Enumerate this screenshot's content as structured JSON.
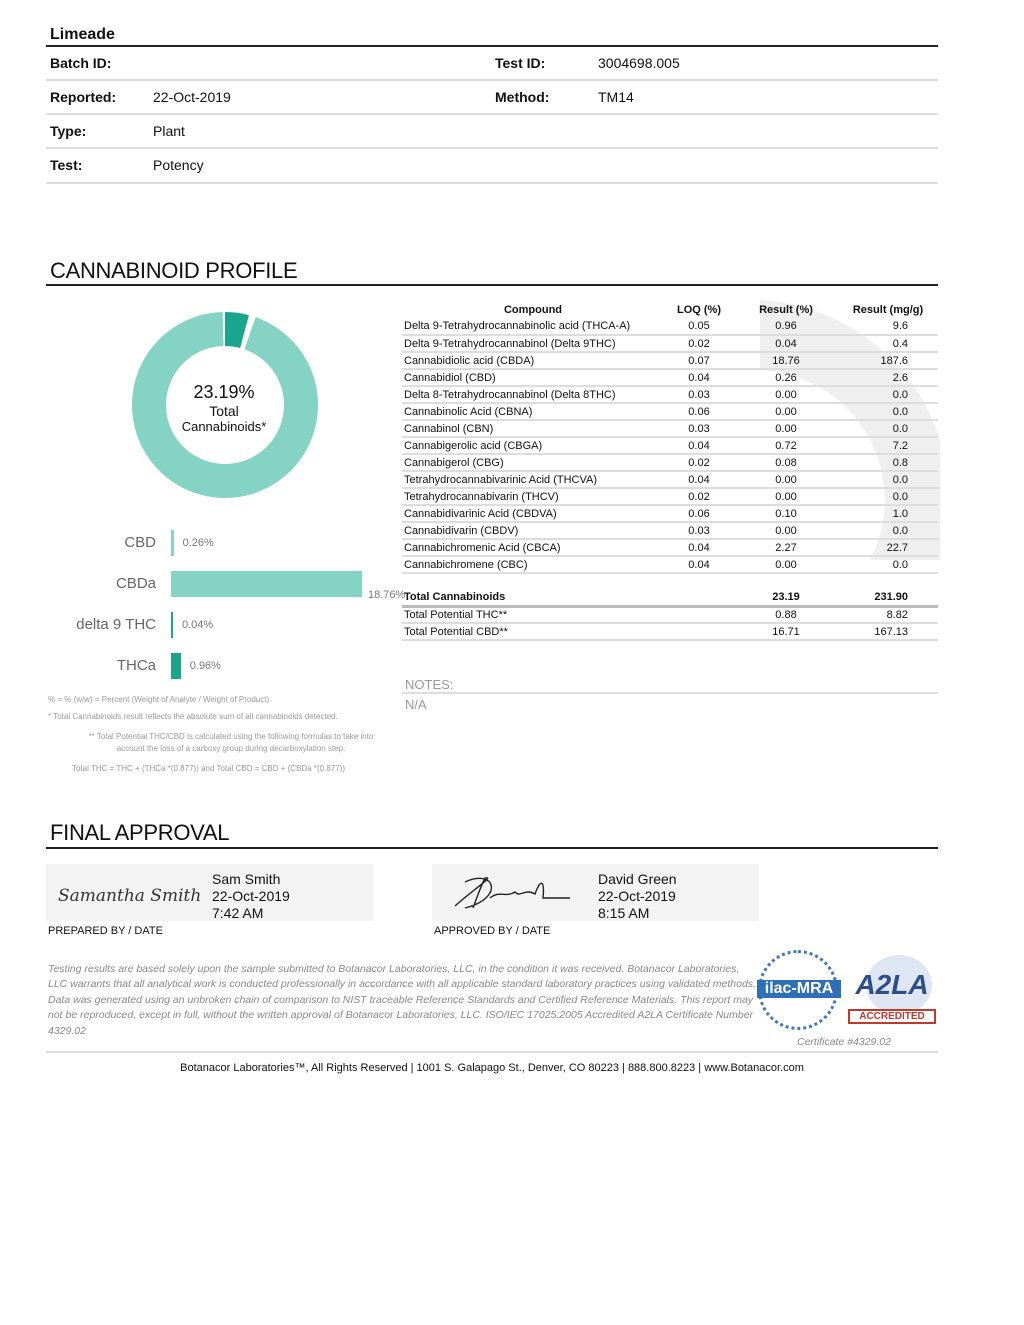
{
  "header": {
    "title": "Limeade",
    "fields": [
      {
        "label": "Batch ID:",
        "value": ""
      },
      {
        "label": "Test ID:",
        "value": "3004698.005"
      },
      {
        "label": "Reported:",
        "value": "22-Oct-2019"
      },
      {
        "label": "Method:",
        "value": "TM14"
      },
      {
        "label": "Type:",
        "value": "Plant"
      },
      {
        "label": "Test:",
        "value": "Potency"
      }
    ]
  },
  "profile": {
    "heading": "CANNABINOID PROFILE",
    "donut": {
      "total": "23.19%",
      "line1": "Total",
      "line2": "Cannabinoids*",
      "thca_fraction": 0.0414,
      "colors": {
        "main": "#84d3c4",
        "accent": "#19a68c"
      }
    },
    "bars": [
      {
        "label": "CBD",
        "value": 0.26,
        "text": "0.26%",
        "color": "#84d3c4"
      },
      {
        "label": "CBDa",
        "value": 18.76,
        "text": "18.76%",
        "color": "#84d3c4"
      },
      {
        "label": "delta 9 THC",
        "value": 0.04,
        "text": "0.04%",
        "color": "#19a68c"
      },
      {
        "label": "THCa",
        "value": 0.96,
        "text": "0.96%",
        "color": "#19a68c"
      }
    ],
    "table": {
      "headers": [
        "Compound",
        "LOQ (%)",
        "Result (%)",
        "Result (mg/g)"
      ],
      "rows": [
        [
          "Delta 9-Tetrahydrocannabinolic acid (THCA-A)",
          "0.05",
          "0.96",
          "9.6"
        ],
        [
          "Delta 9-Tetrahydrocannabinol  (Delta 9THC)",
          "0.02",
          "0.04",
          "0.4"
        ],
        [
          "Cannabidiolic acid  (CBDA)",
          "0.07",
          "18.76",
          "187.6"
        ],
        [
          "Cannabidiol  (CBD)",
          "0.04",
          "0.26",
          "2.6"
        ],
        [
          "Delta 8-Tetrahydrocannabinol  (Delta 8THC)",
          "0.03",
          "0.00",
          "0.0"
        ],
        [
          "Cannabinolic Acid  (CBNA)",
          "0.06",
          "0.00",
          "0.0"
        ],
        [
          "Cannabinol  (CBN)",
          "0.03",
          "0.00",
          "0.0"
        ],
        [
          "Cannabigerolic acid  (CBGA)",
          "0.04",
          "0.72",
          "7.2"
        ],
        [
          "Cannabigerol  (CBG)",
          "0.02",
          "0.08",
          "0.8"
        ],
        [
          "Tetrahydrocannabivarinic Acid  (THCVA)",
          "0.04",
          "0.00",
          "0.0"
        ],
        [
          "Tetrahydrocannabivarin  (THCV)",
          "0.02",
          "0.00",
          "0.0"
        ],
        [
          "Cannabidivarinic Acid  (CBDVA)",
          "0.06",
          "0.10",
          "1.0"
        ],
        [
          "Cannabidivarin  (CBDV)",
          "0.03",
          "0.00",
          "0.0"
        ],
        [
          "Cannabichromenic Acid  (CBCA)",
          "0.04",
          "2.27",
          "22.7"
        ],
        [
          "Cannabichromene  (CBC)",
          "0.04",
          "0.00",
          "0.0"
        ]
      ],
      "totals": [
        [
          "Total Cannabinoids",
          "23.19",
          "231.90"
        ],
        [
          "Total Potential THC**",
          "0.88",
          "8.82"
        ],
        [
          "Total Potential CBD**",
          "16.71",
          "167.13"
        ]
      ]
    },
    "notes_label": "NOTES:",
    "notes_value": "N/A",
    "footnotes": [
      "% = % (w/w) = Percent (Weight of Analyte / Weight of Product)",
      "* Total Cannabinoids result reflects the absolute sum of all cannabinoids detected.",
      "** Total Potential THC/CBD is calculated using the following formulas to take into account the loss of a carboxy group during decarboxylation step.",
      "Total THC = THC + (THCa *(0.877)) and Total CBD = CBD + (CBDa *(0.877))"
    ]
  },
  "approval": {
    "heading": "FINAL APPROVAL",
    "prepared": {
      "name": "Sam Smith",
      "date": "22-Oct-2019",
      "time": "7:42 AM",
      "caption": "PREPARED BY / DATE",
      "signature": "Samantha Smith"
    },
    "approved": {
      "name": "David Green",
      "date": "22-Oct-2019",
      "time": "8:15 AM",
      "caption": "APPROVED BY / DATE"
    }
  },
  "disclaimer": "Testing results are based solely upon the sample submitted to Botanacor Laboratories, LLC, in the condition it was received. Botanacor Laboratories, LLC warrants that all analytical work is conducted professionally in accordance with all applicable standard laboratory practices using validated methods. Data was generated using an unbroken chain of comparison to NIST traceable Reference Standards and Certified Reference Materials. This report may not be reproduced, except in full, without the written approval of Botanacor Laboratories, LLC. ISO/IEC 17025:2005 Accredited A2LA Certificate Number 4329.02",
  "logos": {
    "ilac": "ilac-MRA",
    "a2la": "A2LA",
    "accredited": "ACCREDITED",
    "certificate": "Certificate #4329.02"
  },
  "footer": "Botanacor Laboratories™, All Rights Reserved  | 1001 S. Galapago St., Denver, CO 80223 |  888.800.8223  |  www.Botanacor.com"
}
